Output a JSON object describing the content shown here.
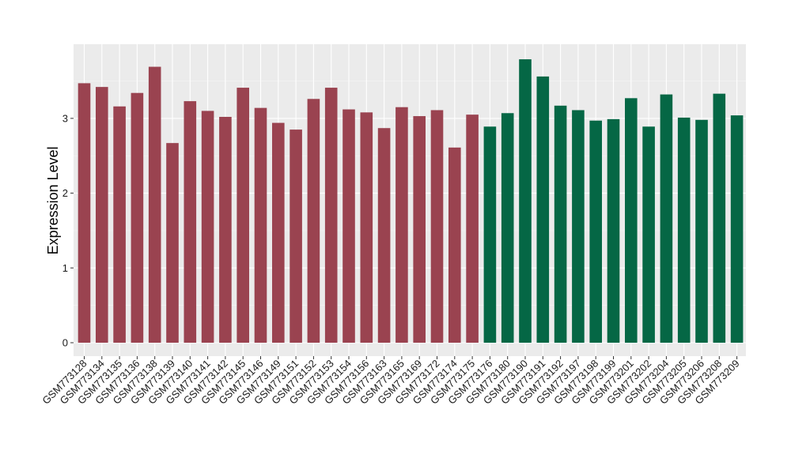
{
  "chart_data": {
    "type": "bar",
    "title": "",
    "xlabel": "",
    "ylabel": "Expression Level",
    "ylim": [
      0,
      4
    ],
    "yticks": [
      0,
      1,
      2,
      3
    ],
    "grid": true,
    "panel_background": "#ebebeb",
    "categories": [
      "GSM773128",
      "GSM773134",
      "GSM773135",
      "GSM773136",
      "GSM773138",
      "GSM773139",
      "GSM773140",
      "GSM773141",
      "GSM773142",
      "GSM773145",
      "GSM773146",
      "GSM773149",
      "GSM773151",
      "GSM773152",
      "GSM773153",
      "GSM773154",
      "GSM773156",
      "GSM773163",
      "GSM773165",
      "GSM773169",
      "GSM773172",
      "GSM773174",
      "GSM773175",
      "GSM773176",
      "GSM773180",
      "GSM773190",
      "GSM773191",
      "GSM773192",
      "GSM773197",
      "GSM773198",
      "GSM773199",
      "GSM773201",
      "GSM773202",
      "GSM773204",
      "GSM773205",
      "GSM773206",
      "GSM773208",
      "GSM773209"
    ],
    "values": [
      3.47,
      3.42,
      3.16,
      3.34,
      3.69,
      2.67,
      3.23,
      3.1,
      3.02,
      3.41,
      3.14,
      2.94,
      2.85,
      3.26,
      3.41,
      3.12,
      3.08,
      2.87,
      3.15,
      3.03,
      3.11,
      2.61,
      3.05,
      2.89,
      3.07,
      3.79,
      3.56,
      3.17,
      3.11,
      2.97,
      2.99,
      3.27,
      2.89,
      3.32,
      3.01,
      2.98,
      3.33,
      3.04
    ],
    "groups": [
      "red",
      "red",
      "red",
      "red",
      "red",
      "red",
      "red",
      "red",
      "red",
      "red",
      "red",
      "red",
      "red",
      "red",
      "red",
      "red",
      "red",
      "red",
      "red",
      "red",
      "red",
      "red",
      "red",
      "green",
      "green",
      "green",
      "green",
      "green",
      "green",
      "green",
      "green",
      "green",
      "green",
      "green",
      "green",
      "green",
      "green",
      "green"
    ],
    "colors": {
      "red": "#9a4350",
      "green": "#056745"
    }
  }
}
